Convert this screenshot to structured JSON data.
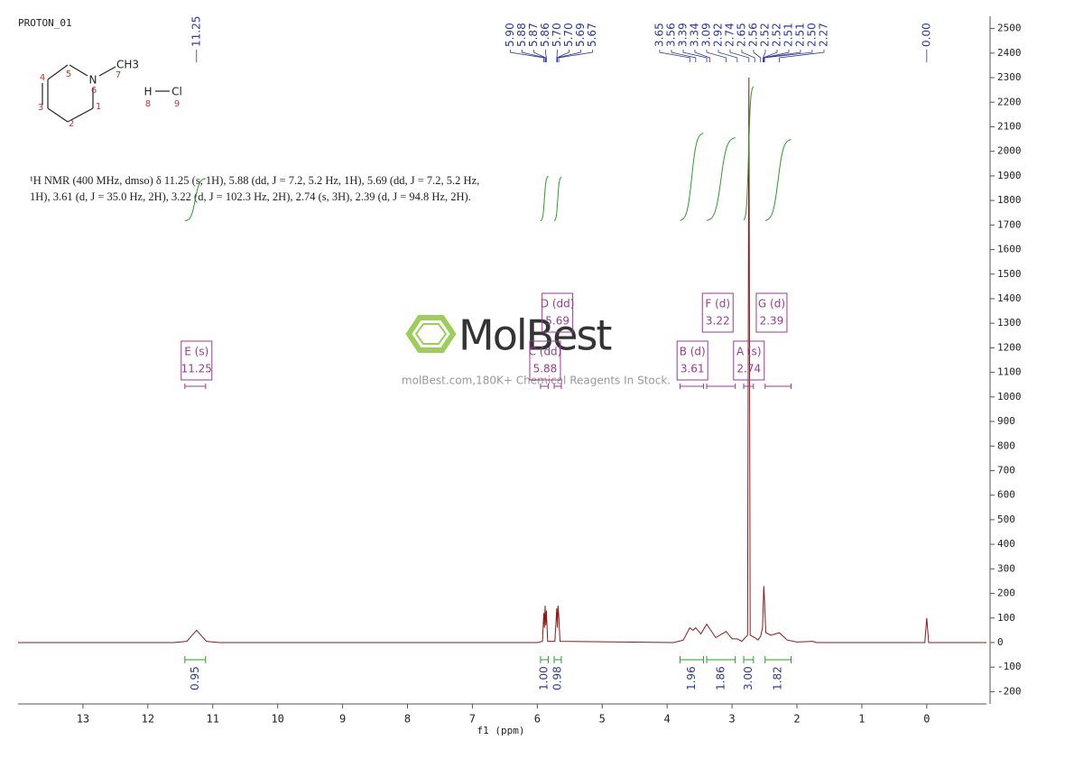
{
  "title": "PROTON_01",
  "structure": {
    "atoms": [
      "N",
      "CH3",
      "H",
      "Cl"
    ],
    "numbers": [
      1,
      2,
      3,
      4,
      5,
      6,
      7,
      8,
      9
    ]
  },
  "description": [
    "¹H NMR (400 MHz, dmso) δ 11.25 (s, 1H), 5.88 (dd, J = 7.2, 5.2 Hz, 1H), 5.69 (dd, J = 7.2, 5.2 Hz,",
    "1H), 3.61 (d, J = 35.0 Hz, 2H), 3.22 (d, J = 102.3 Hz, 2H), 2.74 (s, 3H), 2.39 (d, J = 94.8 Hz, 2H)."
  ],
  "watermark": {
    "logo": "MolBest",
    "text": "molBest.com,180K+ Chemical Reagents In Stock."
  },
  "chart_data": {
    "type": "line",
    "x_label": "f1 (ppm)",
    "xlim": [
      14.0,
      -0.92
    ],
    "xticks": [
      13,
      12,
      11,
      10,
      9,
      8,
      7,
      6,
      5,
      4,
      3,
      2,
      1,
      0
    ],
    "ylim": [
      -250,
      2550
    ],
    "yticks": [
      -200,
      -100,
      0,
      100,
      200,
      300,
      400,
      500,
      600,
      700,
      800,
      900,
      1000,
      1100,
      1200,
      1300,
      1400,
      1500,
      1600,
      1700,
      1800,
      1900,
      2000,
      2100,
      2200,
      2300,
      2400,
      2500
    ],
    "series": [
      {
        "color": "#8b1a1a",
        "x": [
          14.0,
          11.6,
          11.4,
          11.3,
          11.25,
          11.2,
          11.1,
          10.9,
          6.0,
          5.92,
          5.9,
          5.89,
          5.88,
          5.87,
          5.86,
          5.84,
          5.73,
          5.7,
          5.69,
          5.68,
          5.67,
          5.65,
          3.9,
          3.75,
          3.65,
          3.6,
          3.56,
          3.48,
          3.39,
          3.34,
          3.25,
          3.09,
          3.0,
          2.92,
          2.85,
          2.76,
          2.74,
          2.72,
          2.65,
          2.6,
          2.56,
          2.53,
          2.51,
          2.5,
          2.48,
          2.4,
          2.27,
          2.15,
          2.0,
          1.76,
          1.7,
          0.03,
          0.0,
          -0.03,
          -0.92
        ],
        "values": [
          0,
          0,
          5,
          35,
          50,
          35,
          5,
          0,
          0,
          5,
          120,
          60,
          150,
          70,
          130,
          5,
          5,
          140,
          60,
          150,
          110,
          5,
          0,
          10,
          60,
          50,
          60,
          35,
          75,
          55,
          20,
          45,
          15,
          15,
          5,
          30,
          2300,
          30,
          20,
          10,
          25,
          60,
          230,
          180,
          40,
          30,
          40,
          10,
          2,
          5,
          0,
          0,
          100,
          0,
          0
        ]
      }
    ],
    "peak_labels": [
      11.25,
      {
        "value": 5.9,
        "label": "5.90"
      },
      5.88,
      5.87,
      5.86,
      {
        "value": 5.7,
        "label": "5.70"
      },
      {
        "value": 5.7,
        "label": "5.70"
      },
      5.69,
      5.67,
      3.65,
      3.56,
      3.39,
      3.34,
      3.09,
      2.92,
      2.74,
      2.65,
      2.56,
      2.52,
      2.52,
      2.51,
      2.51,
      {
        "value": 2.5,
        "label": "2.50"
      },
      2.27,
      {
        "value": 0,
        "label": "0.00"
      }
    ],
    "multiplets": [
      {
        "label": "E (s)",
        "shift": 11.25,
        "range": [
          11.43,
          11.11
        ]
      },
      {
        "label": "D (dd)",
        "shift": 5.69,
        "range": [
          5.74,
          5.63
        ]
      },
      {
        "label": "C (dd)",
        "shift": 5.88,
        "range": [
          5.95,
          5.83
        ]
      },
      {
        "label": "B (d)",
        "shift": 3.61,
        "range": [
          3.8,
          3.44
        ]
      },
      {
        "label": "F (d)",
        "shift": 3.22,
        "range": [
          3.39,
          2.95
        ]
      },
      {
        "label": "A (s)",
        "shift": 2.74,
        "range": [
          2.82,
          2.67
        ]
      },
      {
        "label": "G (d)",
        "shift": 2.39,
        "range": [
          2.49,
          2.09
        ]
      }
    ],
    "integrals": [
      {
        "value": 0.95,
        "range": [
          11.43,
          11.11
        ]
      },
      {
        "value": 1.0,
        "label": "1.00",
        "range": [
          5.95,
          5.83
        ]
      },
      {
        "value": 0.98,
        "range": [
          5.74,
          5.63
        ]
      },
      {
        "value": 1.96,
        "range": [
          3.8,
          3.44
        ]
      },
      {
        "value": 1.86,
        "range": [
          3.39,
          2.95
        ]
      },
      {
        "value": 3.0,
        "label": "3.00",
        "range": [
          2.82,
          2.67
        ]
      },
      {
        "value": 1.82,
        "range": [
          2.49,
          2.09
        ]
      }
    ],
    "integral_color": "#2a9d2a",
    "label_color": "#2b3a9a",
    "multiplet_color": "#9b3a94"
  }
}
